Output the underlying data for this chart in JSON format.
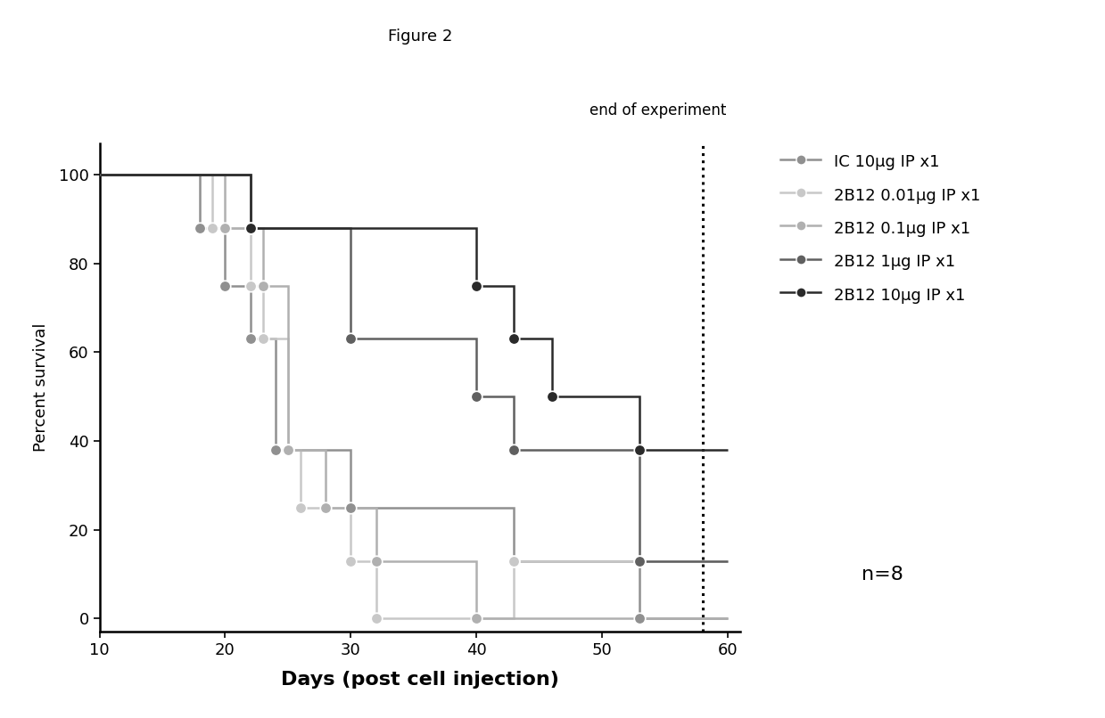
{
  "title": "Figure 2",
  "xlabel": "Days (post cell injection)",
  "ylabel": "Percent survival",
  "end_of_experiment_x": 58,
  "end_of_experiment_label": "end of experiment",
  "xlim": [
    10,
    61
  ],
  "ylim": [
    -3,
    107
  ],
  "xticks": [
    10,
    20,
    30,
    40,
    50,
    60
  ],
  "yticks": [
    0,
    20,
    40,
    60,
    80,
    100
  ],
  "n_label": "n=8",
  "series": [
    {
      "label": "IC 10μg IP x1",
      "color": "#909090",
      "steps": [
        [
          10,
          100
        ],
        [
          18,
          100
        ],
        [
          18,
          88
        ],
        [
          20,
          88
        ],
        [
          20,
          75
        ],
        [
          22,
          75
        ],
        [
          22,
          63
        ],
        [
          24,
          63
        ],
        [
          24,
          38
        ],
        [
          30,
          38
        ],
        [
          30,
          25
        ],
        [
          43,
          25
        ],
        [
          43,
          13
        ],
        [
          53,
          13
        ],
        [
          53,
          0
        ],
        [
          60,
          0
        ]
      ],
      "markers": [
        [
          18,
          88
        ],
        [
          20,
          75
        ],
        [
          22,
          63
        ],
        [
          24,
          38
        ],
        [
          30,
          25
        ],
        [
          43,
          13
        ],
        [
          53,
          0
        ]
      ]
    },
    {
      "label": "2B12 0.01μg IP x1",
      "color": "#c8c8c8",
      "steps": [
        [
          10,
          100
        ],
        [
          19,
          100
        ],
        [
          19,
          88
        ],
        [
          22,
          88
        ],
        [
          22,
          75
        ],
        [
          23,
          75
        ],
        [
          23,
          63
        ],
        [
          25,
          63
        ],
        [
          25,
          38
        ],
        [
          26,
          38
        ],
        [
          26,
          25
        ],
        [
          30,
          25
        ],
        [
          30,
          13
        ],
        [
          32,
          13
        ],
        [
          32,
          0
        ],
        [
          43,
          0
        ],
        [
          43,
          13
        ],
        [
          53,
          13
        ],
        [
          60,
          13
        ]
      ],
      "markers": [
        [
          19,
          88
        ],
        [
          22,
          75
        ],
        [
          23,
          63
        ],
        [
          25,
          38
        ],
        [
          26,
          25
        ],
        [
          30,
          13
        ],
        [
          32,
          0
        ],
        [
          43,
          13
        ],
        [
          53,
          13
        ]
      ]
    },
    {
      "label": "2B12 0.1μg IP x1",
      "color": "#b0b0b0",
      "steps": [
        [
          10,
          100
        ],
        [
          20,
          100
        ],
        [
          20,
          88
        ],
        [
          23,
          88
        ],
        [
          23,
          75
        ],
        [
          25,
          75
        ],
        [
          25,
          38
        ],
        [
          28,
          38
        ],
        [
          28,
          25
        ],
        [
          32,
          25
        ],
        [
          32,
          13
        ],
        [
          40,
          13
        ],
        [
          40,
          0
        ],
        [
          60,
          0
        ]
      ],
      "markers": [
        [
          20,
          88
        ],
        [
          23,
          75
        ],
        [
          25,
          38
        ],
        [
          28,
          25
        ],
        [
          32,
          13
        ],
        [
          40,
          0
        ]
      ]
    },
    {
      "label": "2B12 1μg IP x1",
      "color": "#606060",
      "steps": [
        [
          10,
          100
        ],
        [
          22,
          100
        ],
        [
          22,
          88
        ],
        [
          30,
          88
        ],
        [
          30,
          63
        ],
        [
          40,
          63
        ],
        [
          40,
          50
        ],
        [
          43,
          50
        ],
        [
          43,
          38
        ],
        [
          53,
          38
        ],
        [
          53,
          13
        ],
        [
          60,
          13
        ]
      ],
      "markers": [
        [
          22,
          88
        ],
        [
          30,
          63
        ],
        [
          40,
          50
        ],
        [
          43,
          38
        ],
        [
          53,
          13
        ]
      ]
    },
    {
      "label": "2B12 10μg IP x1",
      "color": "#2a2a2a",
      "steps": [
        [
          10,
          100
        ],
        [
          22,
          100
        ],
        [
          22,
          88
        ],
        [
          40,
          88
        ],
        [
          40,
          75
        ],
        [
          43,
          75
        ],
        [
          43,
          63
        ],
        [
          46,
          63
        ],
        [
          46,
          50
        ],
        [
          53,
          50
        ],
        [
          53,
          38
        ],
        [
          60,
          38
        ]
      ],
      "markers": [
        [
          22,
          88
        ],
        [
          40,
          75
        ],
        [
          43,
          63
        ],
        [
          46,
          50
        ],
        [
          53,
          38
        ]
      ]
    }
  ]
}
